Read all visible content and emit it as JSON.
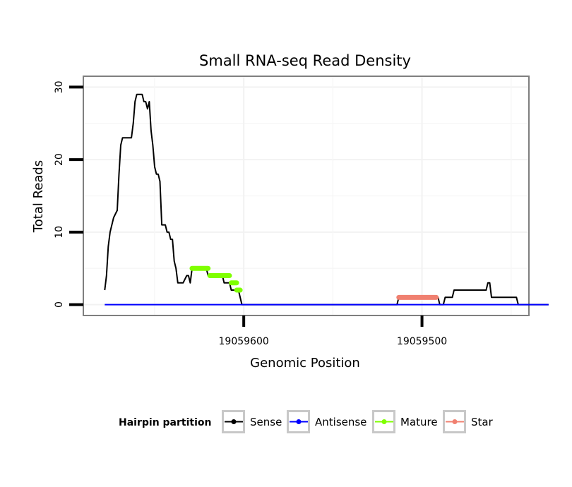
{
  "chart_data": {
    "type": "line",
    "title": "Small RNA-seq Read Density",
    "xlabel": "Genomic Position",
    "ylabel": "Total Reads",
    "x_reversed": true,
    "xlim": [
      19059690,
      19059440
    ],
    "ylim": [
      -1.5,
      31.5
    ],
    "x_ticks": [
      19059600,
      19059500
    ],
    "x_tick_labels": [
      "19059600",
      "19059500"
    ],
    "y_ticks": [
      0,
      10,
      20,
      30
    ],
    "y_tick_labels": [
      "0",
      "10",
      "20",
      "30"
    ],
    "legend_title": "Hairpin partition",
    "series": [
      {
        "name": "Sense",
        "color": "#000000",
        "points": [
          [
            19059678,
            2
          ],
          [
            19059677,
            4
          ],
          [
            19059676,
            8
          ],
          [
            19059675,
            10
          ],
          [
            19059673,
            12
          ],
          [
            19059671,
            13
          ],
          [
            19059670,
            18
          ],
          [
            19059669,
            22
          ],
          [
            19059668,
            23
          ],
          [
            19059663,
            23
          ],
          [
            19059662,
            25
          ],
          [
            19059661,
            28
          ],
          [
            19059660,
            29
          ],
          [
            19059657,
            29
          ],
          [
            19059656,
            28
          ],
          [
            19059655,
            28
          ],
          [
            19059654,
            27
          ],
          [
            19059653,
            28
          ],
          [
            19059652,
            24
          ],
          [
            19059651,
            22
          ],
          [
            19059650,
            19
          ],
          [
            19059649,
            18
          ],
          [
            19059648,
            18
          ],
          [
            19059647,
            17
          ],
          [
            19059646,
            11
          ],
          [
            19059644,
            11
          ],
          [
            19059643,
            10
          ],
          [
            19059642,
            10
          ],
          [
            19059641,
            9
          ],
          [
            19059640,
            9
          ],
          [
            19059639,
            6
          ],
          [
            19059638,
            5
          ],
          [
            19059637,
            3
          ],
          [
            19059634,
            3
          ],
          [
            19059632,
            4
          ],
          [
            19059631,
            4
          ],
          [
            19059630,
            3
          ],
          [
            19059629,
            5
          ],
          [
            19059621,
            5
          ],
          [
            19059620,
            4
          ],
          [
            19059612,
            4
          ],
          [
            19059611,
            3
          ],
          [
            19059608,
            3
          ],
          [
            19059607,
            2
          ],
          [
            19059603,
            2
          ],
          [
            19059601,
            0
          ],
          [
            19059514,
            0
          ],
          [
            19059513,
            1
          ],
          [
            19059491,
            1
          ],
          [
            19059490,
            0
          ],
          [
            19059488,
            0
          ],
          [
            19059487,
            1
          ],
          [
            19059483,
            1
          ],
          [
            19059482,
            2
          ],
          [
            19059464,
            2
          ],
          [
            19059463,
            3
          ],
          [
            19059462,
            3
          ],
          [
            19059461,
            1
          ],
          [
            19059447,
            1
          ],
          [
            19059446,
            0
          ],
          [
            19059429,
            0
          ]
        ]
      },
      {
        "name": "Antisense",
        "color": "#0000FF",
        "points": [
          [
            19059678,
            0
          ],
          [
            19059429,
            0
          ]
        ]
      },
      {
        "name": "Mature",
        "color": "#7FFF00",
        "segments": [
          [
            [
              19059629,
              5
            ],
            [
              19059620,
              5
            ]
          ],
          [
            [
              19059619,
              4
            ],
            [
              19059608,
              4
            ]
          ],
          [
            [
              19059607,
              3
            ],
            [
              19059604,
              3
            ]
          ],
          [
            [
              19059604,
              2
            ],
            [
              19059602,
              2
            ]
          ]
        ]
      },
      {
        "name": "Star",
        "color": "#F08070",
        "segments": [
          [
            [
              19059513,
              1
            ],
            [
              19059492,
              1
            ]
          ]
        ]
      }
    ]
  }
}
